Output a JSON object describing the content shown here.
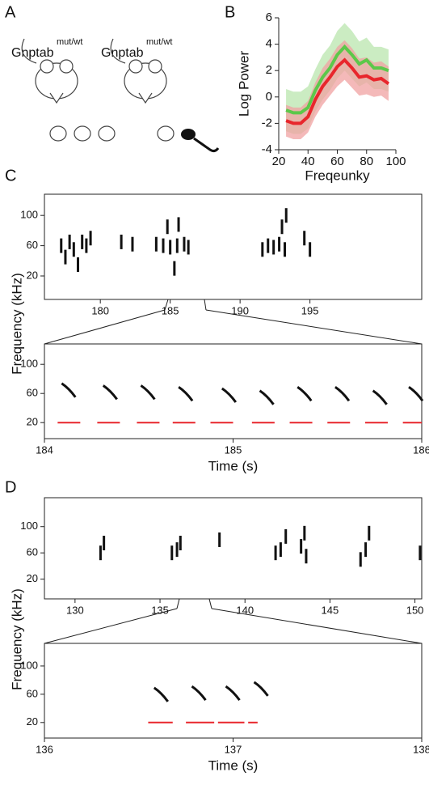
{
  "panels": [
    "A",
    "B",
    "C",
    "D"
  ],
  "genotype": {
    "name": "Gnptab",
    "superscript": "mut/wt"
  },
  "chart_data": [
    {
      "type": "line",
      "xlabel": "Freqeunky",
      "ylabel": "Log Power",
      "x": [
        25,
        30,
        35,
        40,
        45,
        50,
        55,
        60,
        65,
        70,
        75,
        80,
        85,
        90,
        95
      ],
      "xlim": [
        20,
        100
      ],
      "xticks": [
        20,
        40,
        60,
        80,
        100
      ],
      "ylim": [
        -4,
        6
      ],
      "yticks": [
        -4,
        -2,
        0,
        2,
        4,
        6
      ],
      "series": [
        {
          "color": "#5cc84a",
          "band_color": "#b9e6ad",
          "values": [
            -1,
            -1.2,
            -1.2,
            -0.8,
            0.5,
            1.5,
            2.2,
            3.2,
            3.8,
            3.2,
            2.5,
            2.8,
            2.2,
            2.2,
            2
          ],
          "error": [
            1.6,
            1.6,
            1.6,
            1.6,
            1.6,
            1.7,
            1.7,
            1.8,
            1.8,
            1.8,
            1.7,
            1.7,
            1.6,
            1.6,
            1.6
          ]
        },
        {
          "color": "#e8262c",
          "band_color": "#f0a2a2",
          "values": [
            -1.8,
            -2,
            -2,
            -1.5,
            -0.2,
            0.8,
            1.5,
            2.3,
            2.8,
            2.2,
            1.5,
            1.6,
            1.3,
            1.4,
            1
          ],
          "error": [
            1.2,
            1.2,
            1.2,
            1.2,
            1.3,
            1.4,
            1.4,
            1.5,
            1.5,
            1.5,
            1.4,
            1.4,
            1.3,
            1.3,
            1.3
          ]
        }
      ]
    },
    {
      "type": "spectrogram",
      "ylabel": "Frequency (kHz)",
      "xlim": [
        176,
        203
      ],
      "xticks": [
        180,
        185,
        190,
        195
      ],
      "ylim": [
        -11,
        128
      ],
      "yticks": [
        20,
        60,
        100
      ],
      "calls": {
        "x": [
          177.2,
          177.5,
          177.8,
          178.1,
          178.4,
          178.7,
          179.0,
          179.3,
          181.5,
          182.3,
          184.0,
          184.5,
          185.0,
          185.5,
          186.0,
          186.3,
          184.8,
          185.6,
          185.3,
          191.6,
          192.0,
          192.4,
          192.8,
          193.2,
          193.0,
          193.3,
          194.6,
          195.0
        ],
        "y": [
          60,
          45,
          65,
          55,
          35,
          65,
          60,
          70,
          65,
          62,
          62,
          60,
          58,
          60,
          62,
          58,
          85,
          88,
          30,
          55,
          60,
          58,
          62,
          55,
          85,
          100,
          70,
          55
        ]
      }
    },
    {
      "type": "spectrogram",
      "xlabel": "Time (s)",
      "xlim": [
        184,
        186
      ],
      "xticks": [
        184,
        185,
        186
      ],
      "ylim": [
        -2,
        128
      ],
      "yticks": [
        20,
        60,
        100
      ],
      "calls": {
        "x": [
          184.13,
          184.35,
          184.55,
          184.75,
          184.98,
          185.18,
          185.38,
          185.58,
          185.78,
          185.97
        ],
        "y": [
          65,
          62,
          62,
          60,
          58,
          55,
          60,
          60,
          55,
          60
        ]
      },
      "detections": {
        "start": [
          184.07,
          184.28,
          184.49,
          184.68,
          184.88,
          185.1,
          185.3,
          185.5,
          185.7,
          185.9
        ],
        "end": [
          184.19,
          184.4,
          184.61,
          184.8,
          185.0,
          185.22,
          185.42,
          185.62,
          185.82,
          186.0
        ],
        "y": [
          20,
          20,
          20,
          20,
          20,
          20,
          20,
          20,
          20,
          20
        ],
        "color": "#e8262c"
      }
    },
    {
      "type": "spectrogram",
      "ylabel": "Frequency (kHz)",
      "xlim": [
        128.2,
        150.4
      ],
      "xticks": [
        130,
        135,
        140,
        145,
        150
      ],
      "ylim": [
        -10,
        144
      ],
      "yticks": [
        20,
        60,
        100
      ],
      "calls": {
        "x": [
          131.5,
          131.7,
          135.7,
          136.0,
          136.2,
          138.5,
          141.8,
          142.1,
          142.4,
          143.3,
          143.5,
          143.6,
          146.8,
          147.1,
          147.3,
          150.3
        ],
        "y": [
          60,
          75,
          60,
          65,
          75,
          80,
          60,
          65,
          85,
          70,
          90,
          55,
          50,
          65,
          90,
          60
        ]
      }
    },
    {
      "type": "spectrogram",
      "xlabel": "Time (s)",
      "xlim": [
        136,
        138
      ],
      "xticks": [
        136,
        137,
        138
      ],
      "ylim": [
        -2,
        132
      ],
      "yticks": [
        20,
        60,
        100
      ],
      "calls": {
        "x": [
          136.62,
          136.82,
          137.0,
          137.15
        ],
        "y": [
          60,
          62,
          62,
          68
        ]
      },
      "detections": {
        "start": [
          136.55,
          136.75,
          136.92,
          137.08
        ],
        "end": [
          136.68,
          136.9,
          137.06,
          137.13
        ],
        "y": [
          20,
          20,
          20,
          20
        ],
        "color": "#e8262c"
      }
    }
  ]
}
